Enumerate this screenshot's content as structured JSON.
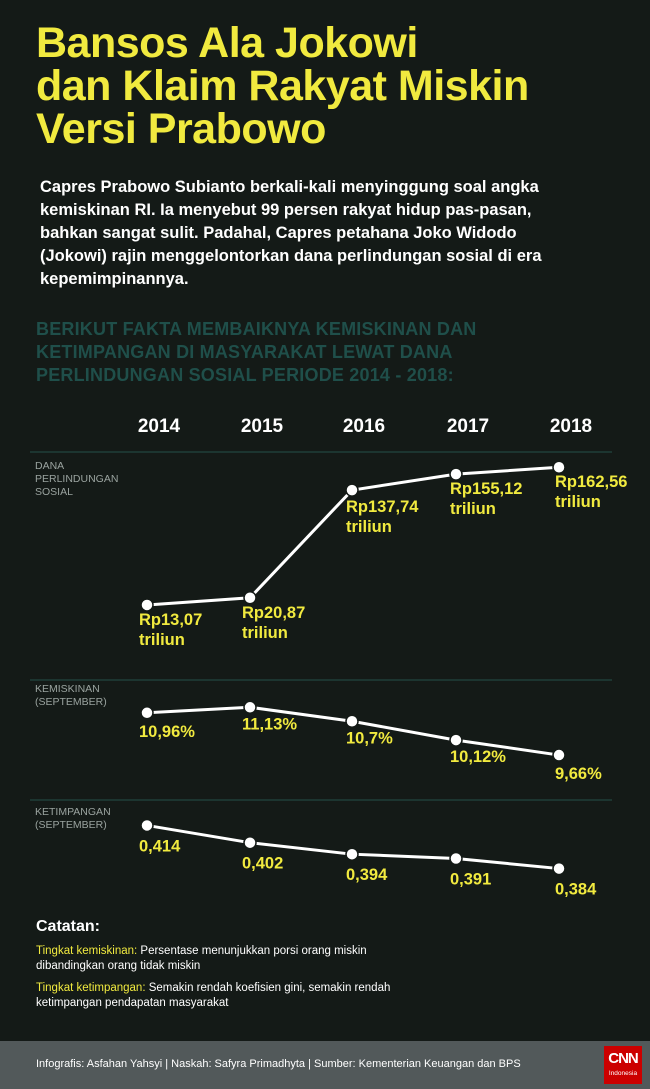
{
  "title_lines": [
    "Bansos Ala Jokowi",
    "dan Klaim Rakyat Miskin",
    "Versi Prabowo"
  ],
  "intro_lines": [
    "Capres Prabowo Subianto berkali-kali menyinggung soal angka",
    "kemiskinan RI. Ia menyebut 99 persen rakyat hidup pas-pasan,",
    "bahkan sangat sulit. Padahal, Capres petahana Joko Widodo",
    "(Jokowi) rajin menggelontorkan dana perlindungan sosial di era",
    "kepemimpinannya."
  ],
  "subhead_lines": [
    "BERIKUT FAKTA MEMBAIKNYA KEMISKINAN DAN",
    "KETIMPANGAN DI MASYARAKAT LEWAT DANA",
    "PERLINDUNGAN SOSIAL PERIODE 2014 - 2018:"
  ],
  "chart_data": {
    "type": "line",
    "title": "",
    "x": [
      "2014",
      "2015",
      "2016",
      "2017",
      "2018"
    ],
    "series": [
      {
        "name": "DANA PERLINDUNGAN SOSIAL",
        "label_lines": [
          "DANA",
          "PERLINDUNGAN",
          "SOSIAL"
        ],
        "values": [
          13.07,
          20.87,
          137.74,
          155.12,
          162.56
        ],
        "labels": [
          [
            "Rp13,07",
            "triliun"
          ],
          [
            "Rp20,87",
            "triliun"
          ],
          [
            "Rp137,74",
            "triliun"
          ],
          [
            "Rp155,12",
            "triliun"
          ],
          [
            "Rp162,56",
            "triliun"
          ]
        ]
      },
      {
        "name": "KEMISKINAN (SEPTEMBER)",
        "label_lines": [
          "KEMISKINAN",
          "(SEPTEMBER)"
        ],
        "values": [
          10.96,
          11.13,
          10.7,
          10.12,
          9.66
        ],
        "labels": [
          [
            "10,96%"
          ],
          [
            "11,13%"
          ],
          [
            "10,7%"
          ],
          [
            "10,12%"
          ],
          [
            "9,66%"
          ]
        ]
      },
      {
        "name": "KETIMPANGAN (SEPTEMBER)",
        "label_lines": [
          "KETIMPANGAN",
          "(SEPTEMBER)"
        ],
        "values": [
          0.414,
          0.402,
          0.394,
          0.391,
          0.384
        ],
        "labels": [
          [
            "0,414"
          ],
          [
            "0,402"
          ],
          [
            "0,394"
          ],
          [
            "0,391"
          ],
          [
            "0,384"
          ]
        ]
      }
    ]
  },
  "notes": {
    "title": "Catatan:",
    "items": [
      {
        "term": "Tingkat kemiskinan:",
        "text_lines": [
          " Persentase menunjukkan porsi orang miskin",
          "dibandingkan orang tidak miskin"
        ]
      },
      {
        "term": "Tingkat ketimpangan:",
        "text_lines": [
          " Semakin rendah koefisien gini, semakin rendah",
          "ketimpangan pendapatan masyarakat"
        ]
      }
    ]
  },
  "footer": {
    "credits": "Infografis: Asfahan Yahsyi | Naskah: Safyra Primadhyta | Sumber: Kementerian Keuangan dan BPS",
    "logo_main": "CNN",
    "logo_sub": "Indonesia"
  },
  "colors": {
    "background": "#141a17",
    "accent": "#f1ea3f",
    "subhead": "#1f4f4a",
    "line": "#ffffff",
    "footer": "#52595a",
    "logo": "#cc0000"
  }
}
